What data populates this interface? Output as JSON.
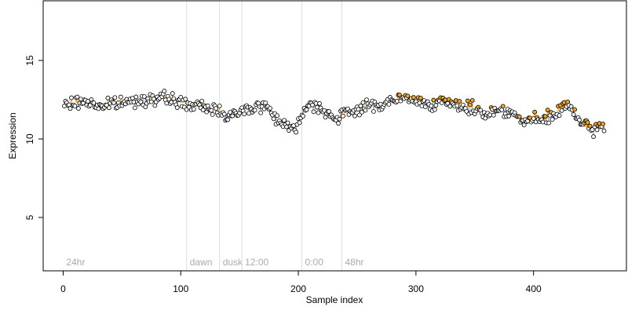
{
  "chart_data": {
    "type": "scatter",
    "title": "",
    "xlabel": "Sample index",
    "ylabel": "Expression",
    "xlim": [
      -17,
      479
    ],
    "ylim": [
      1.6,
      18.8
    ],
    "xticks": [
      0,
      100,
      200,
      300,
      400
    ],
    "yticks": [
      5,
      10,
      15
    ],
    "grid": false,
    "colors": {
      "point_fill_default": "#ffffff",
      "point_fill_highlight": "#f5a623",
      "point_stroke": "#000000",
      "segment_up": "#f5a623",
      "segment_down": "#8ab4e8",
      "phase_line": "#dddddd",
      "phase_label": "#aaaaaa"
    },
    "phases": [
      {
        "x": 0,
        "label": "24hr"
      },
      {
        "x": 105,
        "label": "dawn"
      },
      {
        "x": 133,
        "label": "dusk"
      },
      {
        "x": 152,
        "label": "12:00"
      },
      {
        "x": 203,
        "label": "0:00"
      },
      {
        "x": 237,
        "label": "48hr"
      }
    ],
    "anchors": [
      [
        0,
        12.1
      ],
      [
        10,
        12.3
      ],
      [
        20,
        12.4
      ],
      [
        30,
        12.1
      ],
      [
        40,
        12.2
      ],
      [
        50,
        12.3
      ],
      [
        60,
        12.4
      ],
      [
        70,
        12.6
      ],
      [
        80,
        12.5
      ],
      [
        90,
        12.6
      ],
      [
        100,
        12.3
      ],
      [
        110,
        12.1
      ],
      [
        120,
        12.0
      ],
      [
        130,
        11.9
      ],
      [
        138,
        11.6
      ],
      [
        148,
        11.5
      ],
      [
        155,
        11.9
      ],
      [
        165,
        12.1
      ],
      [
        175,
        12.0
      ],
      [
        180,
        11.4
      ],
      [
        188,
        11.0
      ],
      [
        195,
        10.6
      ],
      [
        200,
        10.9
      ],
      [
        205,
        12.1
      ],
      [
        215,
        12.2
      ],
      [
        225,
        11.7
      ],
      [
        232,
        11.1
      ],
      [
        240,
        11.7
      ],
      [
        250,
        11.9
      ],
      [
        260,
        12.1
      ],
      [
        270,
        12.2
      ],
      [
        280,
        12.4
      ],
      [
        290,
        12.6
      ],
      [
        300,
        12.4
      ],
      [
        310,
        12.3
      ],
      [
        320,
        12.3
      ],
      [
        330,
        12.2
      ],
      [
        340,
        12.1
      ],
      [
        350,
        11.9
      ],
      [
        360,
        11.6
      ],
      [
        370,
        11.9
      ],
      [
        380,
        11.8
      ],
      [
        390,
        11.1
      ],
      [
        400,
        11.2
      ],
      [
        410,
        11.2
      ],
      [
        420,
        11.7
      ],
      [
        430,
        12.2
      ],
      [
        435,
        11.7
      ],
      [
        440,
        10.9
      ],
      [
        450,
        10.6
      ],
      [
        460,
        10.8
      ]
    ],
    "n_points": 460,
    "noise": 0.28,
    "seed": 7
  }
}
